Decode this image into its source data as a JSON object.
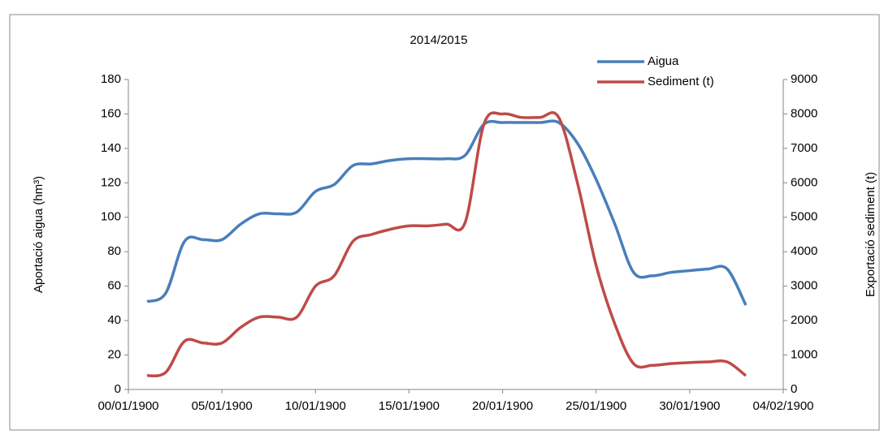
{
  "chart_data": {
    "type": "line",
    "title": "2014/2015",
    "y_label": "Aportació aigua (hm³)",
    "y2_label": "Exportació sediment (t)",
    "x": [
      1,
      2,
      3,
      4,
      5,
      6,
      7,
      8,
      9,
      10,
      11,
      12,
      13,
      14,
      15,
      16,
      17,
      18,
      19,
      20,
      21,
      22,
      23,
      24,
      25,
      26,
      27,
      28,
      29,
      30,
      31,
      32,
      33
    ],
    "xlim": [
      0,
      35
    ],
    "xticks": [
      {
        "value": 0,
        "label": "00/01/1900"
      },
      {
        "value": 5,
        "label": "05/01/1900"
      },
      {
        "value": 10,
        "label": "10/01/1900"
      },
      {
        "value": 15,
        "label": "15/01/1900"
      },
      {
        "value": 20,
        "label": "20/01/1900"
      },
      {
        "value": 25,
        "label": "25/01/1900"
      },
      {
        "value": 30,
        "label": "30/01/1900"
      },
      {
        "value": 35,
        "label": "04/02/1900"
      }
    ],
    "ylim": [
      0,
      180
    ],
    "yticks": [
      0,
      20,
      40,
      60,
      80,
      100,
      120,
      140,
      160,
      180
    ],
    "y2lim": [
      0,
      9000
    ],
    "y2ticks": [
      0,
      1000,
      2000,
      3000,
      4000,
      5000,
      6000,
      7000,
      8000,
      9000
    ],
    "legend": "top-right",
    "series": [
      {
        "name": "Aigua",
        "color": "#4a7ebb",
        "values": [
          51,
          56,
          86,
          87,
          87,
          96,
          102,
          102,
          103,
          115,
          119,
          130,
          131,
          133,
          134,
          134,
          134,
          136,
          154,
          155,
          155,
          155,
          155,
          143,
          122,
          96,
          68,
          66,
          68,
          69,
          70,
          70,
          49
        ]
      },
      {
        "name": "Sediment (t)",
        "color": "#be4b48",
        "axis": "y2",
        "values": [
          400,
          500,
          1400,
          1350,
          1350,
          1800,
          2100,
          2100,
          2100,
          3000,
          3300,
          4300,
          4500,
          4650,
          4750,
          4750,
          4800,
          4850,
          7700,
          8000,
          7900,
          7900,
          7900,
          6000,
          3600,
          1900,
          750,
          700,
          750,
          780,
          800,
          800,
          400
        ]
      }
    ]
  }
}
